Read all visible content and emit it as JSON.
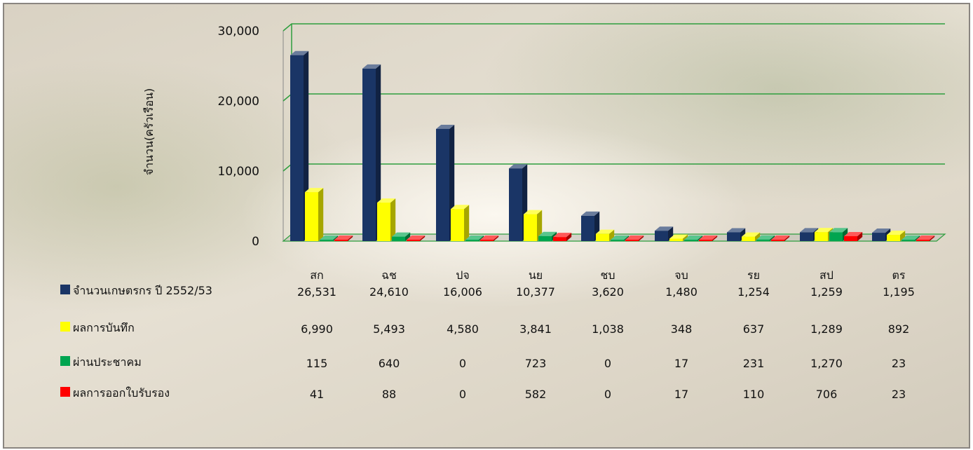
{
  "chart_data": {
    "type": "bar",
    "ylabel": "จำนวน(ครัวเรือน)",
    "ylim": [
      0,
      30000
    ],
    "yticks": [
      "0",
      "10,000",
      "20,000",
      "30,000"
    ],
    "categories": [
      "สก",
      "ฉช",
      "ปจ",
      "นย",
      "ชบ",
      "จบ",
      "รย",
      "สป",
      "ตร"
    ],
    "series": [
      {
        "name": "จำนวนเกษตรกร ปี 2552/53",
        "color": "#1a3566",
        "values": [
          26531,
          24610,
          16006,
          10377,
          3620,
          1480,
          1254,
          1259,
          1195
        ],
        "labels": [
          "26,531",
          "24,610",
          "16,006",
          "10,377",
          "3,620",
          "1,480",
          "1,254",
          "1,259",
          "1,195"
        ]
      },
      {
        "name": "ผลการบันทึก",
        "color": "#ffff00",
        "values": [
          6990,
          5493,
          4580,
          3841,
          1038,
          348,
          637,
          1289,
          892
        ],
        "labels": [
          "6,990",
          "5,493",
          "4,580",
          "3,841",
          "1,038",
          "348",
          "637",
          "1,289",
          "892"
        ]
      },
      {
        "name": "ผ่านประชาคม",
        "color": "#00a550",
        "values": [
          115,
          640,
          0,
          723,
          0,
          17,
          231,
          1270,
          23
        ],
        "labels": [
          "115",
          "640",
          "0",
          "723",
          "0",
          "17",
          "231",
          "1,270",
          "23"
        ]
      },
      {
        "name": "ผลการออกใบรับรอง",
        "color": "#ff0000",
        "values": [
          41,
          88,
          0,
          582,
          0,
          17,
          110,
          706,
          23
        ],
        "labels": [
          "41",
          "88",
          "0",
          "582",
          "0",
          "17",
          "110",
          "706",
          "23"
        ]
      }
    ],
    "grid": true,
    "gridline_color": "#2e9e3e",
    "legend": "data-table-below"
  }
}
